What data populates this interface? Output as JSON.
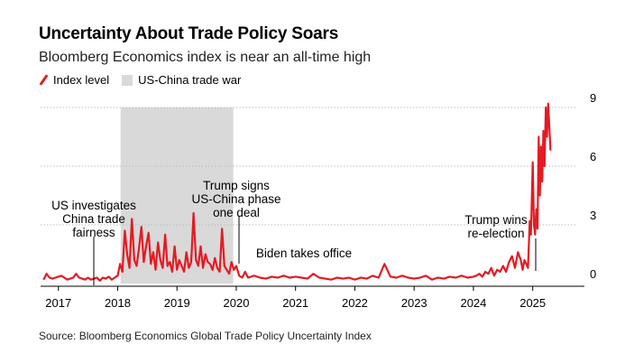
{
  "chart_data": {
    "type": "line",
    "title": "Uncertainty About Trade Policy Soars",
    "subtitle": "Bloomberg Economics index is near an all-time high",
    "source": "Source: Bloomberg Economics Global Trade Policy Uncertainty Index",
    "legend": {
      "line_label": "Index level",
      "shade_label": "US-China trade war"
    },
    "xlim": [
      2016.7,
      2025.75
    ],
    "ylim": [
      0,
      9
    ],
    "x_ticks": [
      2017,
      2018,
      2019,
      2020,
      2021,
      2022,
      2023,
      2024,
      2025
    ],
    "x_tick_labels": [
      "2017",
      "2018",
      "2019",
      "2020",
      "2021",
      "2022",
      "2023",
      "2024",
      "2025"
    ],
    "y_ticks": [
      0,
      3,
      6,
      9
    ],
    "y_tick_labels": [
      "0",
      "3",
      "6",
      "9"
    ],
    "shaded_period": {
      "start": 2018.05,
      "end": 2019.95,
      "label": "US-China trade war"
    },
    "annotations": [
      {
        "text": "US investigates\nChina trade\nfairness",
        "x": 2017.62,
        "y": 0.15
      },
      {
        "text": "Trump signs\nUS-China phase\none deal",
        "x": 2020.04,
        "y": 2.3
      },
      {
        "text": "Biden takes office",
        "x": 2021.05,
        "y": 0.5
      },
      {
        "text": "Trump wins\nre-election",
        "x": 2024.85,
        "y": 1.6
      }
    ],
    "series": [
      {
        "name": "Index level",
        "color": "#e31b23",
        "x": [
          2016.75,
          2016.8,
          2016.85,
          2016.9,
          2016.95,
          2017.0,
          2017.05,
          2017.1,
          2017.15,
          2017.2,
          2017.25,
          2017.3,
          2017.35,
          2017.4,
          2017.45,
          2017.5,
          2017.55,
          2017.6,
          2017.65,
          2017.7,
          2017.75,
          2017.8,
          2017.85,
          2017.9,
          2017.95,
          2018.0,
          2018.04,
          2018.08,
          2018.12,
          2018.16,
          2018.2,
          2018.24,
          2018.28,
          2018.32,
          2018.36,
          2018.4,
          2018.44,
          2018.48,
          2018.52,
          2018.56,
          2018.6,
          2018.64,
          2018.68,
          2018.72,
          2018.76,
          2018.8,
          2018.84,
          2018.88,
          2018.92,
          2018.96,
          2019.0,
          2019.04,
          2019.08,
          2019.12,
          2019.16,
          2019.2,
          2019.24,
          2019.28,
          2019.32,
          2019.36,
          2019.4,
          2019.44,
          2019.48,
          2019.52,
          2019.56,
          2019.6,
          2019.64,
          2019.68,
          2019.72,
          2019.76,
          2019.8,
          2019.84,
          2019.88,
          2019.92,
          2019.96,
          2020.0,
          2020.05,
          2020.1,
          2020.15,
          2020.2,
          2020.3,
          2020.4,
          2020.5,
          2020.6,
          2020.7,
          2020.8,
          2020.9,
          2021.0,
          2021.1,
          2021.2,
          2021.3,
          2021.4,
          2021.5,
          2021.6,
          2021.7,
          2021.8,
          2021.9,
          2022.0,
          2022.1,
          2022.2,
          2022.3,
          2022.4,
          2022.5,
          2022.6,
          2022.7,
          2022.8,
          2022.9,
          2023.0,
          2023.1,
          2023.2,
          2023.3,
          2023.4,
          2023.5,
          2023.6,
          2023.7,
          2023.8,
          2023.9,
          2024.0,
          2024.05,
          2024.1,
          2024.15,
          2024.2,
          2024.25,
          2024.3,
          2024.35,
          2024.4,
          2024.45,
          2024.5,
          2024.55,
          2024.6,
          2024.65,
          2024.7,
          2024.75,
          2024.8,
          2024.83,
          2024.86,
          2024.89,
          2024.92,
          2024.95,
          2024.97,
          2025.0,
          2025.02,
          2025.04,
          2025.06,
          2025.08,
          2025.1,
          2025.12,
          2025.14,
          2025.16,
          2025.18,
          2025.2,
          2025.22,
          2025.24,
          2025.26,
          2025.28,
          2025.3
        ],
        "values": [
          0.2,
          0.5,
          0.3,
          0.25,
          0.3,
          0.35,
          0.4,
          0.3,
          0.2,
          0.25,
          0.3,
          0.5,
          0.3,
          0.25,
          0.2,
          0.3,
          0.2,
          0.25,
          0.3,
          0.15,
          0.3,
          0.25,
          0.35,
          0.2,
          0.3,
          0.4,
          1.0,
          0.6,
          2.7,
          1.5,
          0.8,
          3.3,
          1.2,
          0.9,
          1.8,
          2.9,
          1.1,
          1.9,
          2.6,
          1.0,
          1.6,
          0.7,
          2.1,
          1.2,
          0.8,
          2.5,
          0.9,
          1.1,
          0.6,
          1.9,
          0.7,
          1.2,
          0.9,
          0.6,
          1.6,
          0.8,
          1.1,
          3.6,
          1.2,
          0.9,
          1.9,
          0.8,
          1.5,
          1.1,
          1.0,
          0.7,
          1.3,
          0.8,
          0.6,
          2.8,
          0.9,
          0.7,
          0.5,
          1.1,
          0.7,
          0.9,
          0.4,
          0.3,
          0.6,
          0.3,
          0.4,
          0.3,
          0.25,
          0.35,
          0.3,
          0.4,
          0.3,
          0.35,
          0.3,
          0.25,
          0.5,
          0.3,
          0.25,
          0.2,
          0.3,
          0.25,
          0.3,
          0.2,
          0.3,
          0.25,
          0.4,
          0.3,
          1.0,
          0.35,
          0.3,
          0.4,
          0.3,
          0.25,
          0.3,
          0.4,
          0.2,
          0.3,
          0.25,
          0.35,
          0.3,
          0.4,
          0.3,
          0.35,
          0.4,
          0.5,
          0.35,
          0.6,
          0.5,
          0.8,
          0.4,
          0.7,
          0.6,
          0.9,
          0.6,
          1.1,
          1.4,
          0.8,
          1.6,
          1.2,
          0.7,
          1.2,
          1.0,
          0.8,
          3.2,
          2.5,
          6.2,
          3.0,
          2.5,
          3.8,
          2.8,
          7.5,
          4.5,
          7.0,
          5.2,
          7.8,
          6.0,
          9.0,
          7.5,
          9.2,
          8.0,
          6.8
        ]
      }
    ]
  }
}
